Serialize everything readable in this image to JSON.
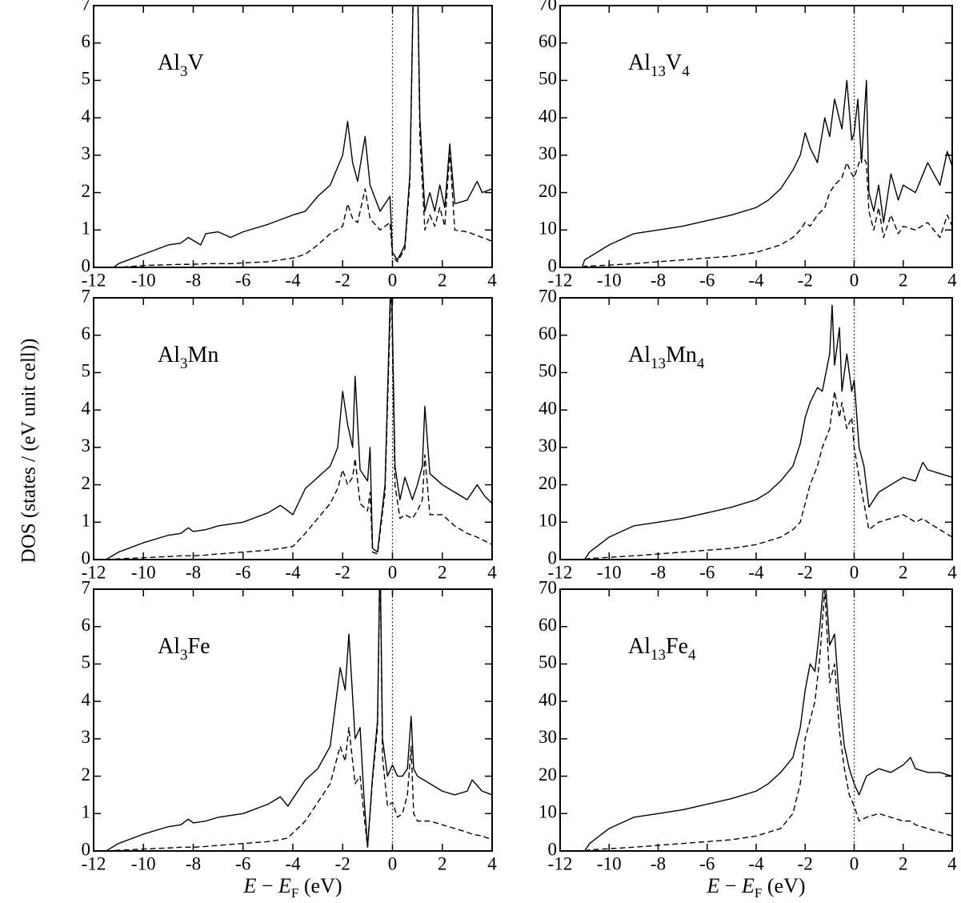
{
  "ylabel": "DOS (states / (eV unit cell))",
  "chart_data": [
    {
      "type": "line",
      "title_parts": [
        "Al",
        "3",
        "V"
      ],
      "x": [
        -11.2,
        -11,
        -10,
        -9,
        -8.5,
        -8.2,
        -7.7,
        -7.5,
        -7,
        -6.5,
        -6,
        -5,
        -4,
        -3.5,
        -3,
        -2.5,
        -2,
        -1.8,
        -1.6,
        -1.4,
        -1.1,
        -0.9,
        -0.5,
        -0.1,
        0,
        0.2,
        0.5,
        0.7,
        0.85,
        1.0,
        1.1,
        1.3,
        1.5,
        1.7,
        1.9,
        2.1,
        2.3,
        2.5,
        3,
        3.4,
        3.6,
        4
      ],
      "series": [
        {
          "color": "#000000",
          "dash": "solid",
          "values": [
            0,
            0.1,
            0.35,
            0.6,
            0.65,
            0.8,
            0.6,
            0.9,
            0.95,
            0.8,
            0.95,
            1.15,
            1.4,
            1.5,
            1.9,
            2.2,
            3.0,
            3.9,
            2.8,
            2.3,
            3.5,
            2.2,
            1.5,
            1.9,
            0.4,
            0.2,
            0.6,
            2.5,
            8,
            8,
            4,
            1.5,
            2.0,
            1.5,
            2.2,
            1.6,
            3.3,
            1.7,
            1.8,
            2.3,
            2.0,
            2.1
          ]
        },
        {
          "color": "#000000",
          "dash": "dashed",
          "values": [
            0,
            0,
            0.05,
            0.07,
            0.08,
            0.08,
            0.09,
            0.1,
            0.1,
            0.1,
            0.12,
            0.15,
            0.25,
            0.35,
            0.6,
            0.9,
            1.1,
            1.7,
            1.3,
            1.2,
            2.1,
            1.3,
            1.0,
            1.2,
            0.3,
            0.15,
            0.5,
            2.3,
            8,
            8,
            3.5,
            1.0,
            1.4,
            1.1,
            1.6,
            1.1,
            3.1,
            1.0,
            0.95,
            0.85,
            0.8,
            0.7
          ]
        }
      ],
      "xlim": [
        -12,
        4
      ],
      "ylim": [
        0,
        7
      ],
      "xticks": [
        -12,
        -10,
        -8,
        -6,
        -4,
        -2,
        0,
        2,
        4
      ],
      "yticks": [
        0,
        1,
        2,
        3,
        4,
        5,
        6,
        7
      ],
      "vline": 0
    },
    {
      "type": "line",
      "title_parts": [
        "Al",
        "13",
        "V",
        "4"
      ],
      "x": [
        -11.1,
        -11,
        -10,
        -9,
        -8,
        -7,
        -6,
        -5,
        -4,
        -3.5,
        -3,
        -2.5,
        -2.2,
        -2,
        -1.8,
        -1.5,
        -1.2,
        -1,
        -0.8,
        -0.5,
        -0.3,
        -0.1,
        0,
        0.15,
        0.3,
        0.5,
        0.6,
        0.8,
        1,
        1.2,
        1.5,
        1.8,
        2,
        2.5,
        3,
        3.5,
        3.8,
        4
      ],
      "series": [
        {
          "color": "#000000",
          "dash": "solid",
          "values": [
            0,
            2,
            6,
            9,
            10,
            11,
            12.5,
            14,
            16,
            18,
            21,
            26,
            30,
            36,
            32,
            28,
            40,
            35,
            45,
            37,
            50,
            34,
            36,
            45,
            28,
            50,
            20,
            15,
            22,
            12,
            25,
            18,
            22,
            20,
            28,
            22,
            31,
            27
          ]
        },
        {
          "color": "#000000",
          "dash": "dashed",
          "values": [
            0,
            0.3,
            0.6,
            1,
            1.5,
            2,
            2.5,
            3,
            4,
            5,
            6,
            8,
            10,
            12,
            11,
            14,
            16,
            20,
            22,
            24,
            28,
            25,
            24,
            27,
            30,
            28,
            15,
            10,
            16,
            8,
            14,
            9,
            11,
            10,
            12,
            8,
            14,
            11
          ]
        }
      ],
      "xlim": [
        -12,
        4
      ],
      "ylim": [
        0,
        70
      ],
      "xticks": [
        -12,
        -10,
        -8,
        -6,
        -4,
        -2,
        0,
        2,
        4
      ],
      "yticks": [
        0,
        10,
        20,
        30,
        40,
        50,
        60,
        70
      ],
      "vline": 0
    },
    {
      "type": "line",
      "title_parts": [
        "Al",
        "3",
        "Mn"
      ],
      "x": [
        -11.5,
        -11,
        -10,
        -9,
        -8.5,
        -8.2,
        -8,
        -7.5,
        -7,
        -6,
        -5,
        -4.5,
        -4,
        -3.5,
        -3,
        -2.5,
        -2.2,
        -2,
        -1.8,
        -1.6,
        -1.5,
        -1.3,
        -1,
        -0.9,
        -0.8,
        -0.6,
        -0.3,
        -0.05,
        0.1,
        0.3,
        0.5,
        0.8,
        1.0,
        1.2,
        1.3,
        1.5,
        2,
        2.5,
        3,
        3.4,
        3.7,
        4
      ],
      "series": [
        {
          "color": "#000000",
          "dash": "solid",
          "values": [
            0,
            0.2,
            0.45,
            0.65,
            0.7,
            0.85,
            0.75,
            0.8,
            0.9,
            1.0,
            1.25,
            1.45,
            1.2,
            1.9,
            2.2,
            2.5,
            3.0,
            4.5,
            3.6,
            3.0,
            4.9,
            2.4,
            2.1,
            3.0,
            0.3,
            0.2,
            2.0,
            8,
            2.5,
            1.6,
            2.2,
            1.6,
            2.0,
            2.5,
            4.1,
            2.3,
            2.0,
            1.8,
            1.6,
            2.0,
            1.7,
            1.5
          ]
        },
        {
          "color": "#000000",
          "dash": "dashed",
          "values": [
            0,
            0.02,
            0.05,
            0.08,
            0.1,
            0.1,
            0.1,
            0.12,
            0.15,
            0.2,
            0.25,
            0.3,
            0.35,
            0.7,
            1.1,
            1.5,
            1.9,
            2.4,
            2.0,
            2.2,
            2.7,
            1.5,
            1.3,
            1.8,
            0.2,
            0.15,
            1.8,
            7.5,
            2.0,
            1.1,
            1.2,
            1.1,
            1.3,
            1.6,
            2.8,
            1.2,
            1.2,
            0.9,
            0.7,
            0.6,
            0.5,
            0.4
          ]
        }
      ],
      "xlim": [
        -12,
        4
      ],
      "ylim": [
        0,
        7
      ],
      "xticks": [
        -12,
        -10,
        -8,
        -6,
        -4,
        -2,
        0,
        2,
        4
      ],
      "yticks": [
        0,
        1,
        2,
        3,
        4,
        5,
        6,
        7
      ],
      "vline": 0
    },
    {
      "type": "line",
      "title_parts": [
        "Al",
        "13",
        "Mn",
        "4"
      ],
      "x": [
        -11,
        -10.8,
        -10,
        -9,
        -8,
        -7,
        -6,
        -5,
        -4,
        -3.5,
        -3,
        -2.5,
        -2.2,
        -2,
        -1.8,
        -1.5,
        -1.3,
        -1,
        -0.9,
        -0.8,
        -0.6,
        -0.5,
        -0.3,
        -0.1,
        0,
        0.2,
        0.4,
        0.6,
        0.8,
        1,
        1.5,
        2,
        2.5,
        2.8,
        3,
        3.5,
        4
      ],
      "series": [
        {
          "color": "#000000",
          "dash": "solid",
          "values": [
            0,
            2,
            6,
            9,
            10,
            11,
            12.5,
            14,
            16,
            18,
            21,
            25,
            31,
            38,
            42,
            46,
            45,
            55,
            68,
            52,
            62,
            45,
            55,
            45,
            48,
            30,
            25,
            14,
            16,
            18,
            20,
            22,
            21,
            26,
            24,
            23,
            22
          ]
        },
        {
          "color": "#000000",
          "dash": "dashed",
          "values": [
            0,
            0.3,
            0.6,
            1,
            1.5,
            2,
            2.5,
            3,
            4,
            5,
            6,
            8,
            10,
            15,
            20,
            25,
            30,
            35,
            40,
            45,
            38,
            42,
            35,
            38,
            30,
            22,
            15,
            8,
            9,
            10,
            11,
            12,
            10,
            11,
            10,
            8,
            6
          ]
        }
      ],
      "xlim": [
        -12,
        4
      ],
      "ylim": [
        0,
        70
      ],
      "xticks": [
        -12,
        -10,
        -8,
        -6,
        -4,
        -2,
        0,
        2,
        4
      ],
      "yticks": [
        0,
        10,
        20,
        30,
        40,
        50,
        60,
        70
      ],
      "vline": 0
    },
    {
      "type": "line",
      "title_parts": [
        "Al",
        "3",
        "Fe"
      ],
      "xlabel_parts": [
        "E",
        " − ",
        "E",
        "F",
        " (eV)"
      ],
      "x": [
        -11.5,
        -11,
        -10,
        -9,
        -8.5,
        -8.2,
        -8,
        -7.5,
        -7,
        -6,
        -5,
        -4.5,
        -4.2,
        -3.5,
        -3,
        -2.5,
        -2.1,
        -1.9,
        -1.75,
        -1.5,
        -1.3,
        -1.15,
        -1,
        -0.8,
        -0.6,
        -0.5,
        -0.4,
        -0.2,
        0,
        0.2,
        0.4,
        0.6,
        0.75,
        0.85,
        1,
        1.5,
        2,
        2.5,
        3,
        3.2,
        3.6,
        4
      ],
      "series": [
        {
          "color": "#000000",
          "dash": "solid",
          "values": [
            0,
            0.2,
            0.45,
            0.65,
            0.7,
            0.85,
            0.75,
            0.8,
            0.9,
            1.0,
            1.25,
            1.45,
            1.2,
            1.9,
            2.2,
            2.8,
            4.9,
            4.3,
            5.8,
            3.0,
            3.3,
            1.5,
            0.1,
            2.0,
            3.5,
            8,
            3.0,
            2.0,
            2.3,
            2.0,
            2.0,
            2.2,
            3.6,
            2.2,
            2.0,
            1.8,
            1.6,
            1.5,
            1.6,
            1.9,
            1.6,
            1.5
          ]
        },
        {
          "color": "#000000",
          "dash": "dashed",
          "values": [
            0,
            0.02,
            0.05,
            0.08,
            0.1,
            0.1,
            0.1,
            0.12,
            0.15,
            0.2,
            0.25,
            0.3,
            0.35,
            0.8,
            1.3,
            1.8,
            2.8,
            2.4,
            3.3,
            1.8,
            2.0,
            1.0,
            0.1,
            1.9,
            3.3,
            8,
            2.5,
            1.2,
            1.3,
            0.9,
            1.0,
            1.5,
            2.8,
            1.0,
            0.8,
            0.8,
            0.7,
            0.6,
            0.5,
            0.45,
            0.4,
            0.3
          ]
        }
      ],
      "xlim": [
        -12,
        4
      ],
      "ylim": [
        0,
        7
      ],
      "xticks": [
        -12,
        -10,
        -8,
        -6,
        -4,
        -2,
        0,
        2,
        4
      ],
      "yticks": [
        0,
        1,
        2,
        3,
        4,
        5,
        6,
        7
      ],
      "vline": 0
    },
    {
      "type": "line",
      "title_parts": [
        "Al",
        "13",
        "Fe",
        "4"
      ],
      "xlabel_parts": [
        "E",
        " − ",
        "E",
        "F",
        " (eV)"
      ],
      "x": [
        -11,
        -10.8,
        -10,
        -9,
        -8,
        -7,
        -6,
        -5,
        -4,
        -3.5,
        -3,
        -2.5,
        -2.2,
        -2,
        -1.8,
        -1.6,
        -1.4,
        -1.2,
        -1,
        -0.8,
        -0.6,
        -0.4,
        -0.2,
        0,
        0.2,
        0.5,
        1,
        1.5,
        2,
        2.3,
        2.5,
        3,
        3.5,
        4
      ],
      "series": [
        {
          "color": "#000000",
          "dash": "solid",
          "values": [
            0,
            2,
            6,
            9,
            10,
            11,
            12.5,
            14,
            16,
            18,
            21,
            25,
            33,
            43,
            50,
            48,
            60,
            75,
            55,
            58,
            40,
            28,
            22,
            18,
            15,
            20,
            22,
            21,
            23,
            25,
            22,
            21,
            21,
            20
          ]
        },
        {
          "color": "#000000",
          "dash": "dashed",
          "values": [
            0,
            0.3,
            0.6,
            1,
            1.5,
            2,
            2.5,
            3,
            4,
            5,
            6,
            10,
            18,
            30,
            35,
            40,
            52,
            70,
            45,
            50,
            32,
            22,
            15,
            12,
            8,
            9,
            10,
            9,
            8,
            8,
            7,
            6,
            5,
            4
          ]
        }
      ],
      "xlim": [
        -12,
        4
      ],
      "ylim": [
        0,
        70
      ],
      "xticks": [
        -12,
        -10,
        -8,
        -6,
        -4,
        -2,
        0,
        2,
        4
      ],
      "yticks": [
        0,
        10,
        20,
        30,
        40,
        50,
        60,
        70
      ],
      "vline": 0
    }
  ]
}
